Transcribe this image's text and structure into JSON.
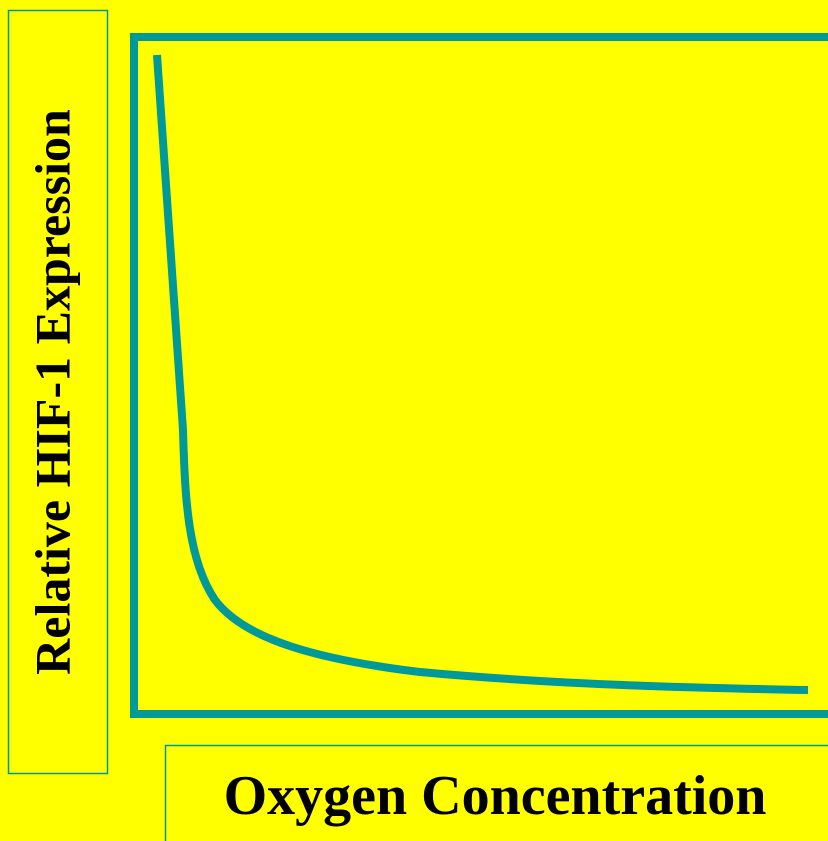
{
  "y_axis_label": "Relative HIF-1 Expression",
  "x_axis_label": "Oxygen Concentration"
}
